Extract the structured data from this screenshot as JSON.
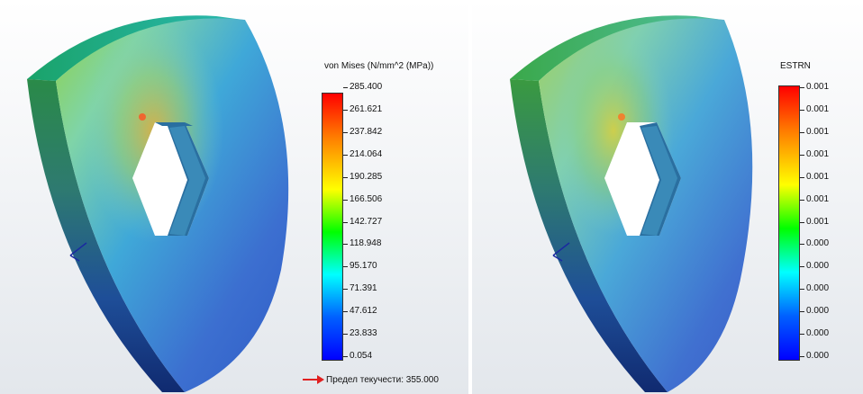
{
  "left_panel": {
    "legend": {
      "title": "von Mises (N/mm^2 (MPa))",
      "ticks": [
        "285.400",
        "261.621",
        "237.842",
        "214.064",
        "190.285",
        "166.506",
        "142.727",
        "118.948",
        "95.170",
        "71.391",
        "47.612",
        "23.833",
        "0.054"
      ]
    },
    "yield_strength": "Предел текучести: 355.000",
    "yield_marker_color": "#e02020"
  },
  "right_panel": {
    "legend": {
      "title": "ESTRN",
      "ticks": [
        "0.001",
        "0.001",
        "0.001",
        "0.001",
        "0.001",
        "0.001",
        "0.001",
        "0.000",
        "0.000",
        "0.000",
        "0.000",
        "0.000",
        "0.000"
      ]
    }
  },
  "colors": {
    "legend_gradient": [
      "#ff0000",
      "#ff7a00",
      "#ffff00",
      "#00ff00",
      "#00ffff",
      "#0060ff",
      "#0000ff"
    ],
    "background_top": "#ffffff",
    "background_bottom": "#dfe4ea"
  },
  "icons": {
    "triad": "axis-triad-icon"
  }
}
